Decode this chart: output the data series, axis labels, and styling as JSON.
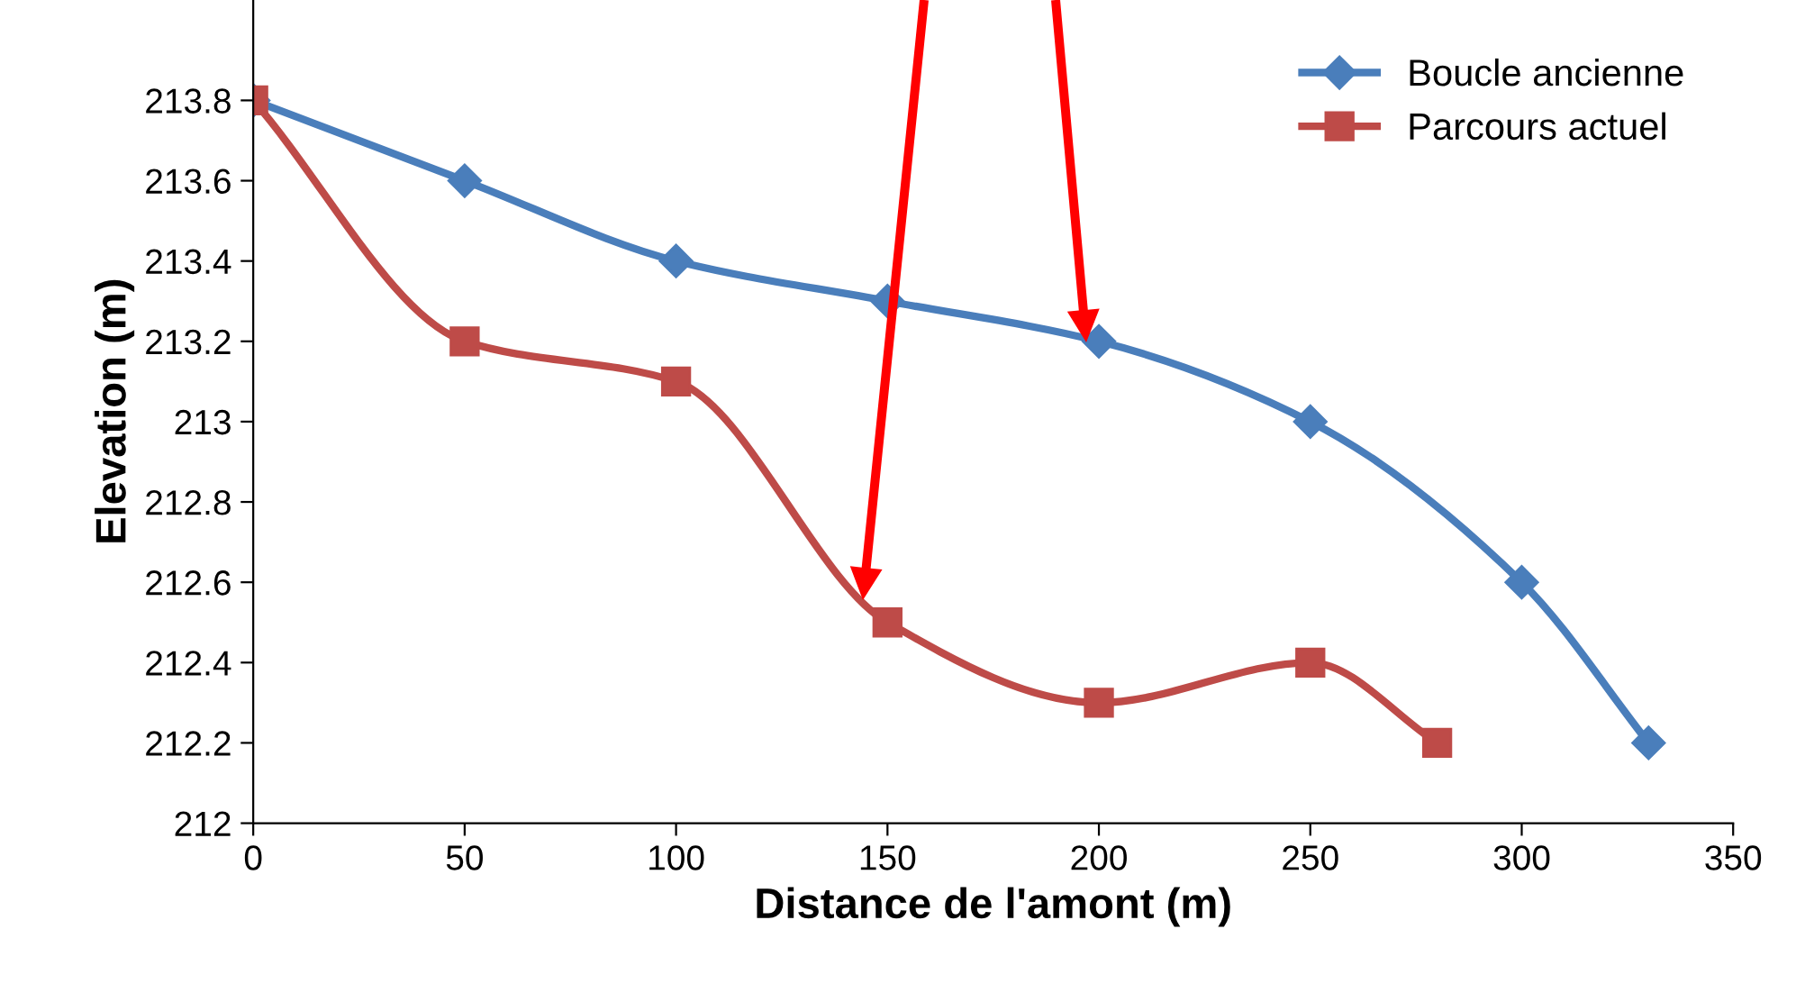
{
  "chart_data": {
    "type": "line",
    "xlabel": "Distance de l'amont (m)",
    "ylabel": "Elevation (m)",
    "series": [
      {
        "name": "Boucle ancienne",
        "color": "#4a7ebb",
        "marker": "diamond",
        "x": [
          0,
          50,
          100,
          150,
          200,
          250,
          300,
          330
        ],
        "values": [
          213.8,
          213.6,
          213.4,
          213.3,
          213.2,
          213.0,
          212.6,
          212.2
        ]
      },
      {
        "name": "Parcours actuel",
        "color": "#be4b48",
        "marker": "square",
        "x": [
          0,
          50,
          100,
          150,
          200,
          250,
          280
        ],
        "values": [
          213.8,
          213.2,
          213.1,
          212.5,
          212.3,
          212.4,
          212.2
        ]
      }
    ],
    "xlim": [
      0,
      350
    ],
    "xticks": [
      0,
      50,
      100,
      150,
      200,
      250,
      300,
      350
    ],
    "ylim": [
      212,
      214.05
    ],
    "yticks": [
      {
        "value": 212,
        "label": "212"
      },
      {
        "value": 212.2,
        "label": "212.2"
      },
      {
        "value": 212.4,
        "label": "212.4"
      },
      {
        "value": 212.6,
        "label": "212.6"
      },
      {
        "value": 212.8,
        "label": "212.8"
      },
      {
        "value": 213,
        "label": "213"
      },
      {
        "value": 213.2,
        "label": "213.2"
      },
      {
        "value": 213.4,
        "label": "213.4"
      },
      {
        "value": 213.6,
        "label": "213.6"
      },
      {
        "value": 213.8,
        "label": "213.8"
      }
    ],
    "grid": false,
    "legend": "top right",
    "line_style": "solid"
  }
}
